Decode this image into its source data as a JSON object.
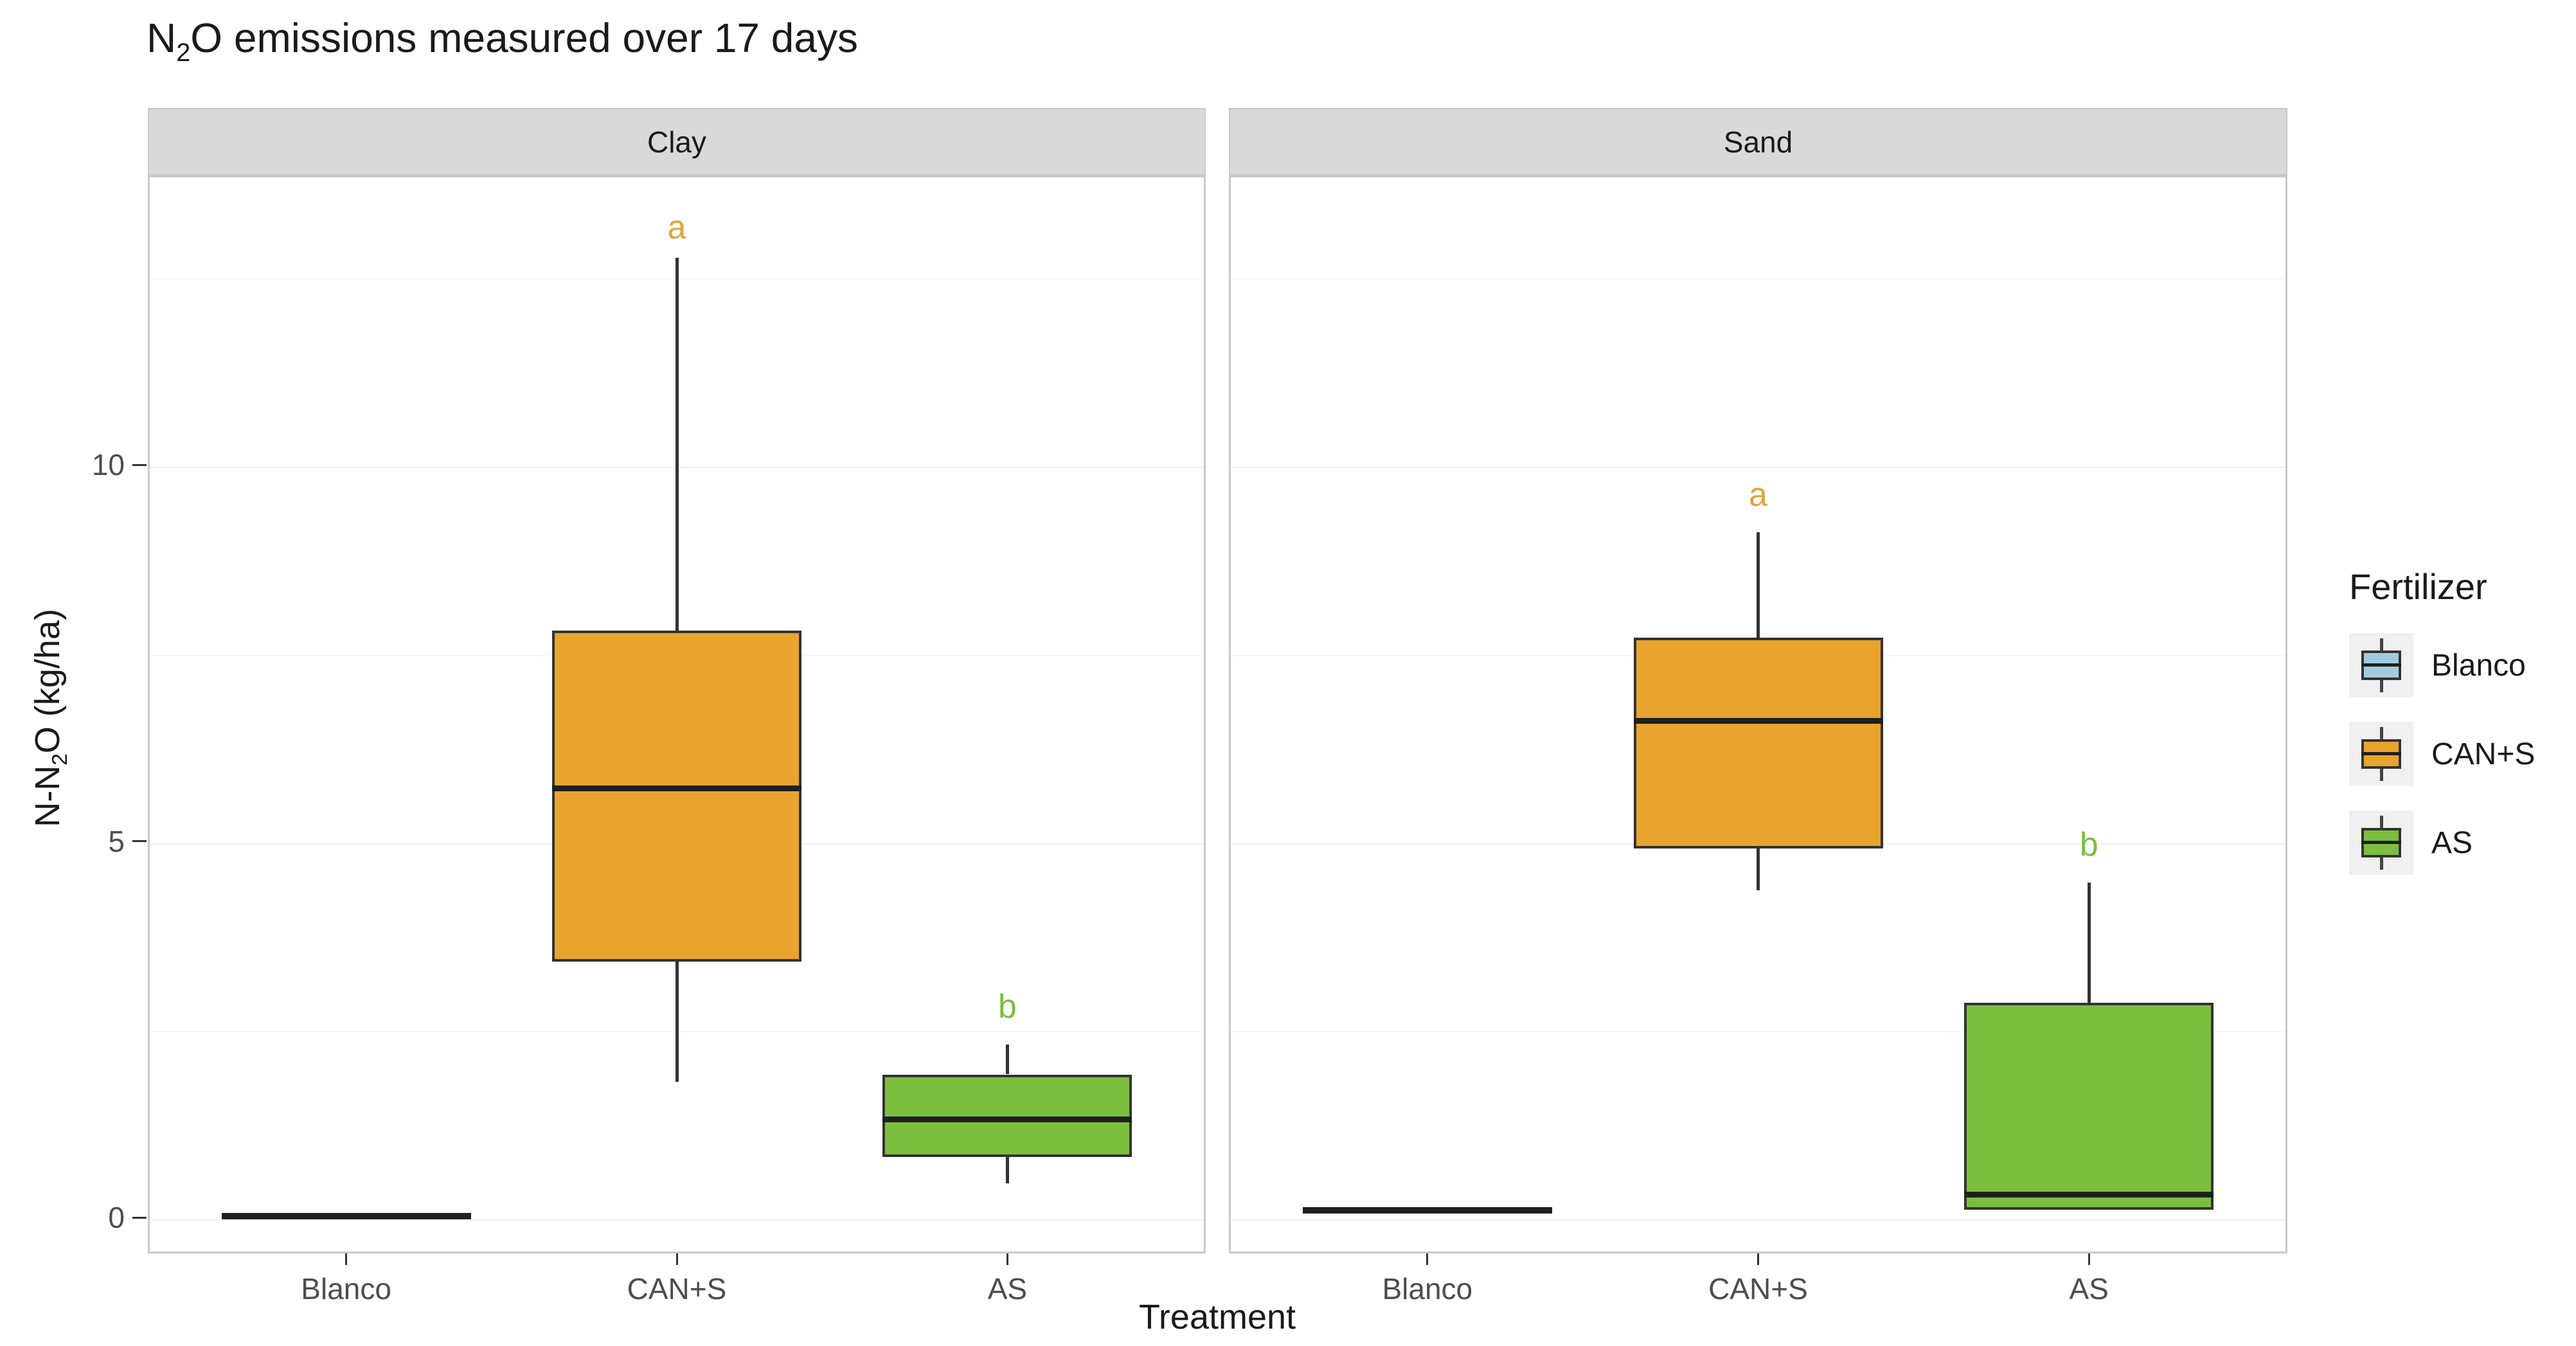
{
  "title": {
    "prefix": "N",
    "sub": "2",
    "suffix": "O emissions measured over 17 days"
  },
  "axes": {
    "x": {
      "title": "Treatment",
      "categories": [
        "Blanco",
        "CAN+S",
        "AS"
      ]
    },
    "y": {
      "title_prefix": "N-N",
      "title_sub": "2",
      "title_suffix": "O (kg/ha)",
      "ticks": [
        {
          "label": "0",
          "value": 0
        },
        {
          "label": "5",
          "value": 5
        },
        {
          "label": "10",
          "value": 10
        }
      ],
      "minor": [
        2.5,
        7.5,
        12.5
      ]
    }
  },
  "facets": [
    "Clay",
    "Sand"
  ],
  "legend": {
    "title": "Fertilizer",
    "items": [
      {
        "label": "Blanco",
        "color": "#a3cbdd"
      },
      {
        "label": "CAN+S",
        "color": "#e8a42c"
      },
      {
        "label": "AS",
        "color": "#7cbf3f"
      }
    ]
  },
  "colors": {
    "box_border": "#333333",
    "median": "#1f1f1f",
    "whisker": "#333333",
    "strip_bg": "#d9d9d9",
    "panel_bg": "#ffffff",
    "panel_border": "#c9c9c9",
    "tick_label": "#4d4d4d",
    "text": "#1a1a1a",
    "letter_a": "#e2a33c",
    "letter_b": "#7cbf3f",
    "background": "#ffffff"
  },
  "chart_data": {
    "type": "box",
    "title": "N2O emissions measured over 17 days",
    "xlabel": "Treatment",
    "ylabel": "N-N2O (kg/ha)",
    "ylim": [
      -0.5,
      13.85
    ],
    "yticks": [
      0,
      5,
      10
    ],
    "grid": "faint",
    "legend_position": "right",
    "facets": [
      {
        "name": "Clay",
        "boxes": [
          {
            "category": "Blanco",
            "fertilizer": "Blanco",
            "min": 0.0,
            "q1": 0.0,
            "median": 0.02,
            "q3": 0.04,
            "max": 0.04,
            "sig_letter": "",
            "sig_letter_y": null
          },
          {
            "category": "CAN+S",
            "fertilizer": "CAN+S",
            "min": 1.8,
            "q1": 3.4,
            "median": 5.7,
            "q3": 7.8,
            "max": 12.75,
            "sig_letter": "a",
            "sig_letter_y": 13.15
          },
          {
            "category": "AS",
            "fertilizer": "AS",
            "min": 0.45,
            "q1": 0.8,
            "median": 1.3,
            "q3": 1.9,
            "max": 2.3,
            "sig_letter": "b",
            "sig_letter_y": 2.8
          }
        ]
      },
      {
        "name": "Sand",
        "boxes": [
          {
            "category": "Blanco",
            "fertilizer": "Blanco",
            "min": 0.05,
            "q1": 0.05,
            "median": 0.1,
            "q3": 0.14,
            "max": 0.14,
            "sig_letter": "",
            "sig_letter_y": null
          },
          {
            "category": "CAN+S",
            "fertilizer": "CAN+S",
            "min": 4.35,
            "q1": 4.9,
            "median": 6.6,
            "q3": 7.7,
            "max": 9.1,
            "sig_letter": "a",
            "sig_letter_y": 9.6
          },
          {
            "category": "AS",
            "fertilizer": "AS",
            "min": 0.1,
            "q1": 0.1,
            "median": 0.3,
            "q3": 2.85,
            "max": 4.45,
            "sig_letter": "b",
            "sig_letter_y": 4.95
          }
        ]
      }
    ]
  }
}
